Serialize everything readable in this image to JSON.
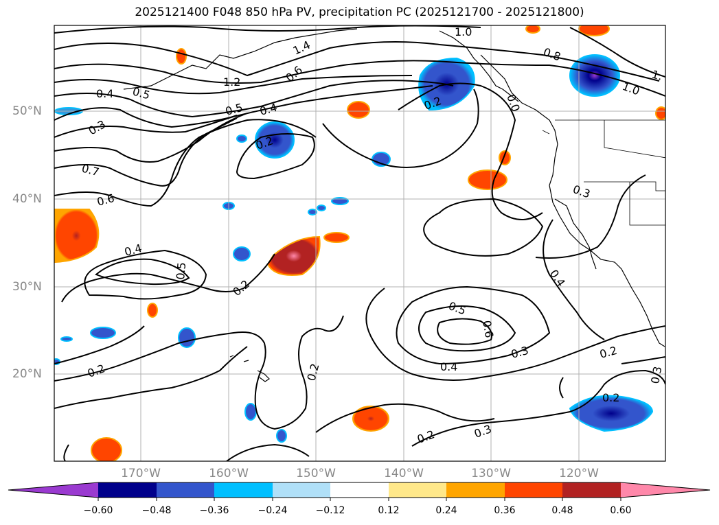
{
  "title": "2025121400 F048 850 hPa PV, precipitation PC (2025121700 - 2025121800)",
  "axes": {
    "lat_labels": [
      "50°N",
      "40°N",
      "30°N",
      "20°N"
    ],
    "lon_labels": [
      "170°W",
      "160°W",
      "150°W",
      "140°W",
      "130°W",
      "120°W"
    ]
  },
  "colorbar": {
    "ticks": [
      "−0.60",
      "−0.48",
      "−0.36",
      "−0.24",
      "−0.12",
      "0.12",
      "0.24",
      "0.36",
      "0.48",
      "0.60"
    ],
    "colors": [
      "#9a3ad0",
      "#00008b",
      "#3355cc",
      "#00bfff",
      "#b0e0f8",
      "#ffffff",
      "#ffe88a",
      "#ffa500",
      "#ff4500",
      "#b22222",
      "#ff88aa"
    ]
  },
  "contour_labels": [
    "1.0",
    "1.4",
    "0.8",
    "1.2",
    "0.5",
    "0.4",
    "0.6",
    "1.0",
    "1.",
    "0.2",
    "0.0",
    "0.5",
    "0.4",
    "0.2",
    "0.3",
    "0.7",
    "0.6",
    "0.3",
    "0.4",
    "0.5",
    "0.2",
    "0.4",
    "0.5",
    "0.6",
    "0.3",
    "0.2",
    "0.4",
    "0.2",
    "0.2",
    "0.2",
    "0.3",
    "0.2",
    "0.3"
  ]
}
